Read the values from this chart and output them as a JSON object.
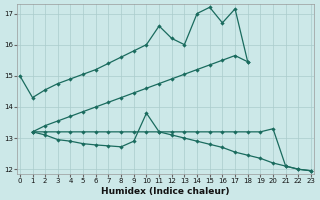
{
  "xlabel": "Humidex (Indice chaleur)",
  "bg_color": "#cce8e8",
  "grid_color": "#aacccc",
  "line_color": "#1a6b5e",
  "xlim": [
    -0.2,
    23.2
  ],
  "ylim": [
    11.85,
    17.3
  ],
  "yticks": [
    12,
    13,
    14,
    15,
    16,
    17
  ],
  "xticks": [
    0,
    1,
    2,
    3,
    4,
    5,
    6,
    7,
    8,
    9,
    10,
    11,
    12,
    13,
    14,
    15,
    16,
    17,
    18,
    19,
    20,
    21,
    22,
    23
  ],
  "line1_x": [
    0,
    1,
    2,
    3,
    4,
    5,
    6,
    7,
    8,
    9,
    10,
    11,
    12,
    13,
    14,
    15,
    16,
    17,
    18
  ],
  "line1_y": [
    15.0,
    14.3,
    14.55,
    14.75,
    14.9,
    15.05,
    15.2,
    15.4,
    15.6,
    15.8,
    16.0,
    16.6,
    16.2,
    16.0,
    17.0,
    17.2,
    16.7,
    17.15,
    15.45
  ],
  "line2_x": [
    1,
    2,
    3,
    4,
    5,
    6,
    7,
    8,
    9,
    10,
    11,
    12,
    13,
    14,
    15,
    16,
    17,
    18
  ],
  "line2_y": [
    13.2,
    13.4,
    13.55,
    13.7,
    13.85,
    14.0,
    14.15,
    14.3,
    14.45,
    14.6,
    14.75,
    14.9,
    15.05,
    15.2,
    15.35,
    15.5,
    15.65,
    15.45
  ],
  "line3_x": [
    1,
    2,
    3,
    4,
    5,
    6,
    7,
    8,
    9,
    10,
    11,
    12,
    13,
    14,
    15,
    16,
    17,
    18,
    19,
    20,
    21,
    22,
    23
  ],
  "line3_y": [
    13.2,
    13.2,
    13.2,
    13.2,
    13.2,
    13.2,
    13.2,
    13.2,
    13.2,
    13.2,
    13.2,
    13.2,
    13.2,
    13.2,
    13.2,
    13.2,
    13.2,
    13.2,
    13.2,
    13.3,
    12.1,
    12.0,
    11.95
  ],
  "line4_x": [
    1,
    2,
    3,
    4,
    5,
    6,
    7,
    8,
    9,
    10,
    11,
    12,
    13,
    14,
    15,
    16,
    17,
    18,
    19,
    20,
    21,
    22,
    23
  ],
  "line4_y": [
    13.2,
    13.1,
    12.95,
    12.9,
    12.82,
    12.78,
    12.75,
    12.72,
    12.9,
    13.8,
    13.2,
    13.1,
    13.0,
    12.9,
    12.8,
    12.7,
    12.55,
    12.45,
    12.35,
    12.2,
    12.1,
    12.0,
    11.95
  ]
}
